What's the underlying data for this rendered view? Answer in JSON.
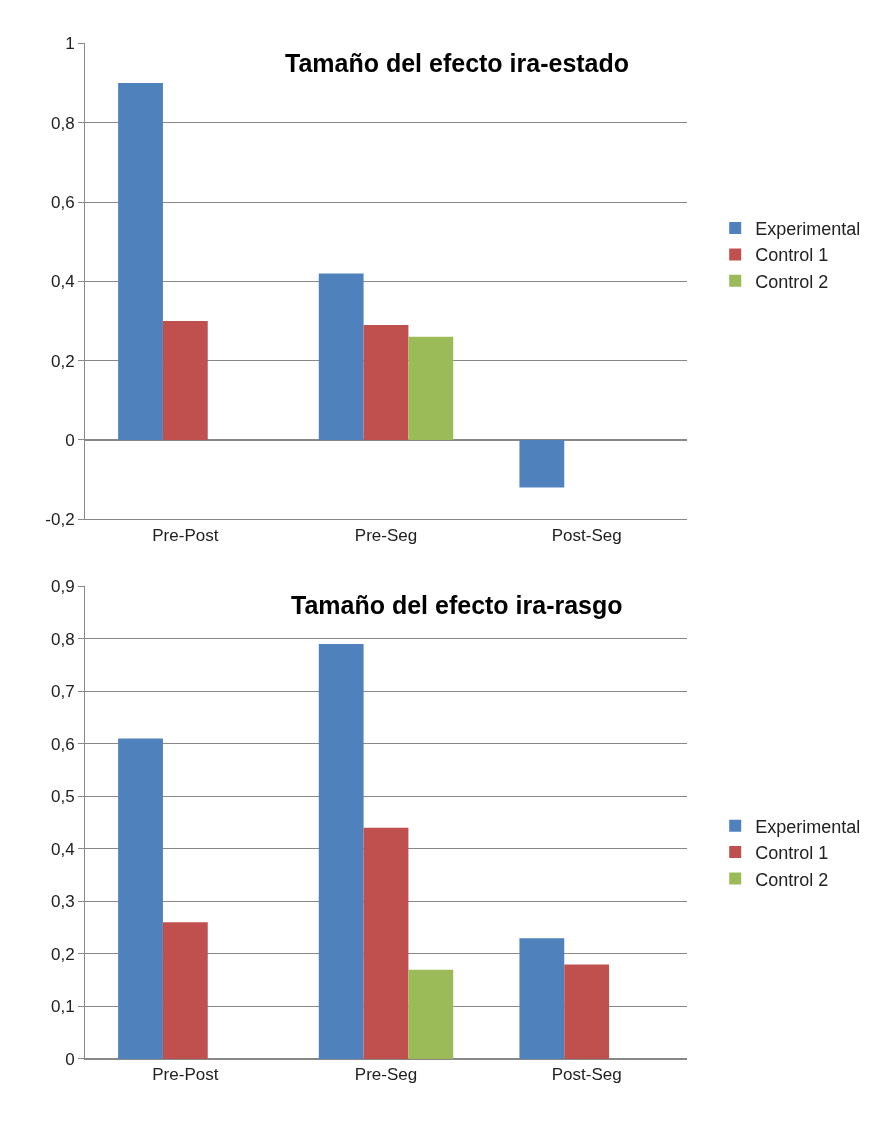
{
  "chart_data": [
    {
      "type": "bar",
      "title": "Tamaño del efecto ira-estado",
      "categories": [
        "Pre-Post",
        "Pre-Seg",
        "Post-Seg"
      ],
      "series": [
        {
          "name": "Experimental",
          "color": "#4f81bd",
          "values": [
            0.9,
            0.42,
            -0.12
          ]
        },
        {
          "name": "Control 1",
          "color": "#c0504d",
          "values": [
            0.3,
            0.29,
            null
          ]
        },
        {
          "name": "Control 2",
          "color": "#9bbb59",
          "values": [
            null,
            0.26,
            null
          ]
        }
      ],
      "ylim": [
        -0.2,
        1
      ],
      "yticks": [
        {
          "value": -0.2,
          "label": "-0,2"
        },
        0,
        {
          "value": 0.2,
          "label": "0,2"
        },
        {
          "value": 0.4,
          "label": "0,4"
        },
        {
          "value": 0.6,
          "label": "0,6"
        },
        {
          "value": 0.8,
          "label": "0,8"
        },
        1
      ],
      "grid": "y",
      "legend": "right"
    },
    {
      "type": "bar",
      "title": "Tamaño del efecto ira-rasgo",
      "categories": [
        "Pre-Post",
        "Pre-Seg",
        "Post-Seg"
      ],
      "series": [
        {
          "name": "Experimental",
          "color": "#4f81bd",
          "values": [
            0.61,
            0.79,
            0.23
          ]
        },
        {
          "name": "Control 1",
          "color": "#c0504d",
          "values": [
            0.26,
            0.44,
            0.18
          ]
        },
        {
          "name": "Control 2",
          "color": "#9bbb59",
          "values": [
            null,
            0.17,
            null
          ]
        }
      ],
      "ylim": [
        0,
        0.9
      ],
      "yticks": [
        0,
        {
          "value": 0.1,
          "label": "0,1"
        },
        {
          "value": 0.2,
          "label": "0,2"
        },
        {
          "value": 0.3,
          "label": "0,3"
        },
        {
          "value": 0.4,
          "label": "0,4"
        },
        {
          "value": 0.5,
          "label": "0,5"
        },
        {
          "value": 0.6,
          "label": "0,6"
        },
        {
          "value": 0.7,
          "label": "0,7"
        },
        {
          "value": 0.8,
          "label": "0,8"
        },
        {
          "value": 0.9,
          "label": "0,9"
        }
      ],
      "grid": "y",
      "legend": "right"
    }
  ]
}
